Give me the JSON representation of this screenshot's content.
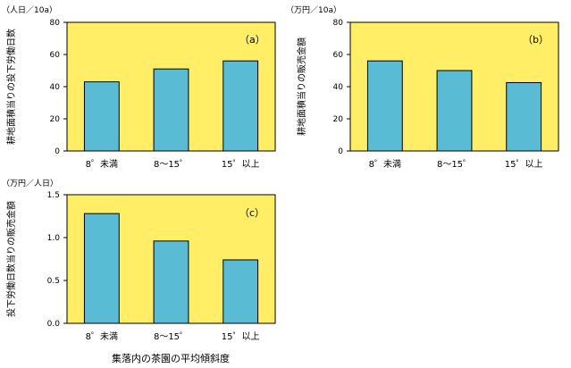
{
  "figure_caption": "集落内の茶園の平均傾斜度",
  "chart_data": [
    {
      "type": "bar",
      "panel_label": "（a）",
      "unit_label": "（人日／10a）",
      "ylabel": "耕地面積当りの投下労働日数",
      "categories": [
        "8゜未満",
        "8～15゜",
        "15゜以上"
      ],
      "values": [
        43,
        51,
        56
      ],
      "ylim": [
        0,
        80
      ],
      "yticks": [
        "0",
        "20",
        "40",
        "60",
        "80"
      ],
      "ytick_values": [
        0,
        20,
        40,
        60,
        80
      ],
      "grid": false,
      "legend": "none",
      "colors": {
        "plot_bg": "#FFEE66",
        "bar": "#59BCD4",
        "outline": "#000000"
      }
    },
    {
      "type": "bar",
      "panel_label": "（b）",
      "unit_label": "（万円／10a）",
      "ylabel": "耕地面積当りの販売金額",
      "categories": [
        "8゜未満",
        "8～15゜",
        "15゜以上"
      ],
      "values": [
        56,
        50,
        42.5
      ],
      "ylim": [
        0,
        80
      ],
      "yticks": [
        "0",
        "20",
        "40",
        "60",
        "80"
      ],
      "ytick_values": [
        0,
        20,
        40,
        60,
        80
      ],
      "grid": false,
      "legend": "none",
      "colors": {
        "plot_bg": "#FFEE66",
        "bar": "#59BCD4",
        "outline": "#000000"
      }
    },
    {
      "type": "bar",
      "panel_label": "（c）",
      "unit_label": "（万円／人日）",
      "ylabel": "投下労働日数当りの販売金額",
      "categories": [
        "8゜未満",
        "8～15゜",
        "15゜以上"
      ],
      "values": [
        1.28,
        0.96,
        0.74
      ],
      "ylim": [
        0,
        1.5
      ],
      "yticks": [
        "0.0",
        "0.5",
        "1.0",
        "1.5"
      ],
      "ytick_values": [
        0,
        0.5,
        1.0,
        1.5
      ],
      "grid": false,
      "legend": "none",
      "colors": {
        "plot_bg": "#FFEE66",
        "bar": "#59BCD4",
        "outline": "#000000"
      }
    }
  ]
}
